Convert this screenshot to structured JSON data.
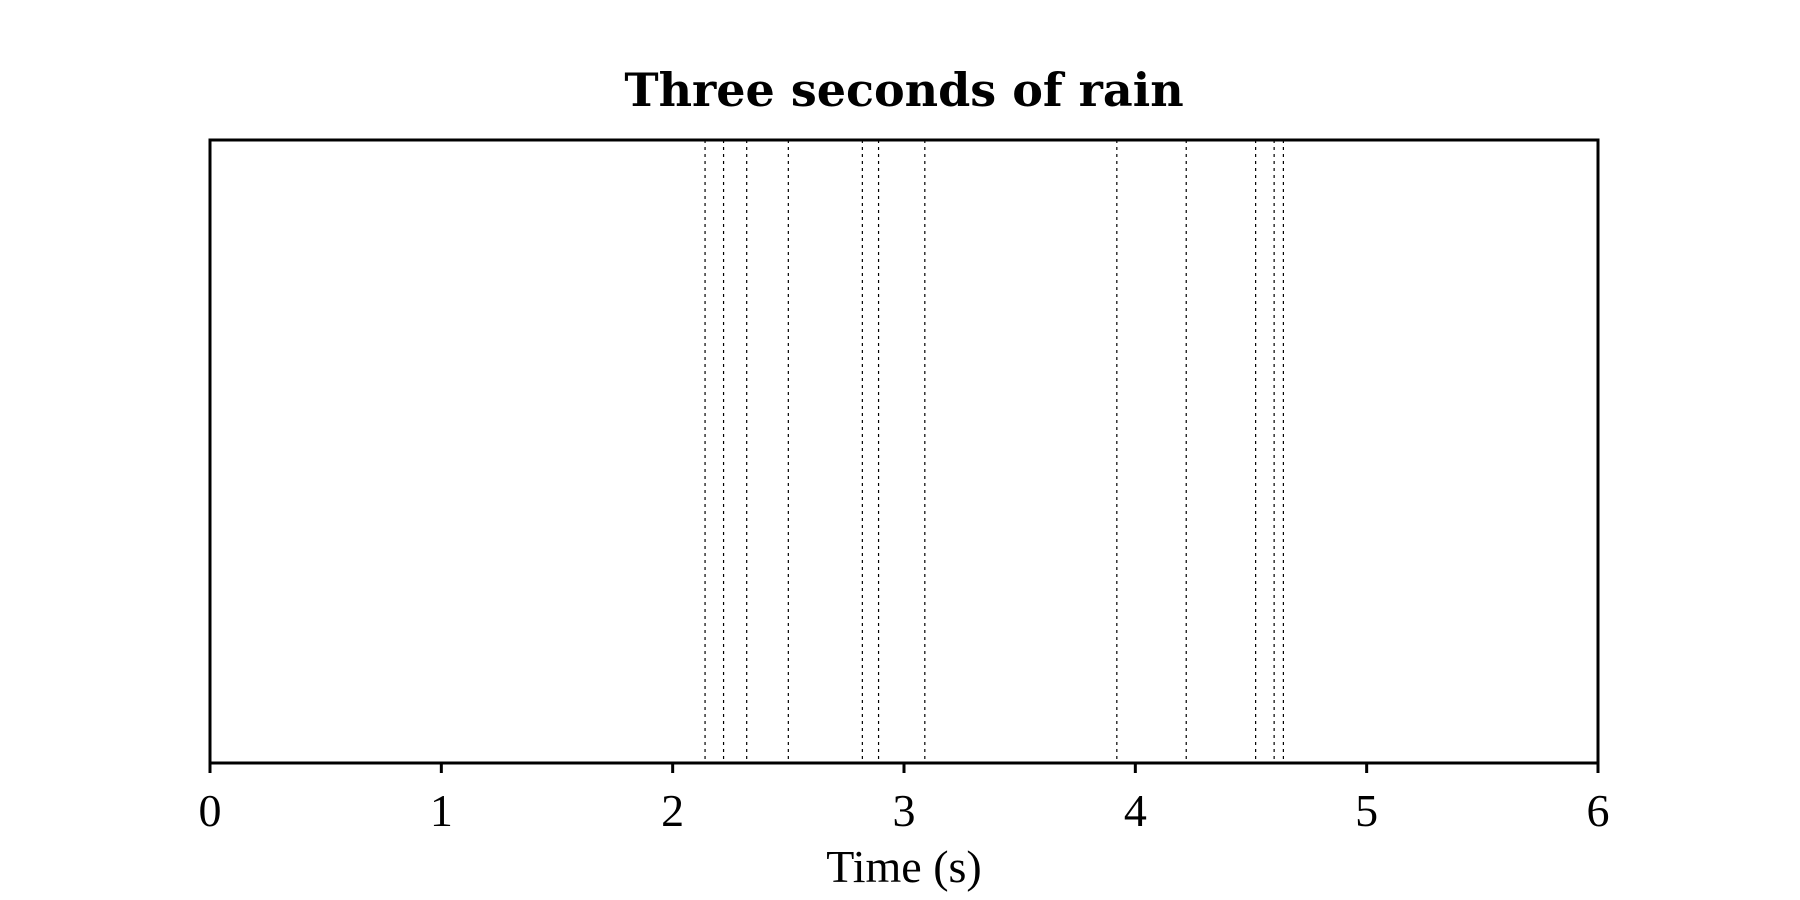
{
  "chart_data": {
    "type": "event",
    "title": "Three seconds of rain",
    "xlabel": "Time (s)",
    "ylabel": "",
    "xlim": [
      0,
      6
    ],
    "xticks": [
      0,
      1,
      2,
      3,
      4,
      5,
      6
    ],
    "xtick_labels": [
      "0",
      "1",
      "2",
      "3",
      "4",
      "5",
      "6"
    ],
    "grid": false,
    "line_style": "dotted",
    "line_color": "#000000",
    "events": [
      2.14,
      2.22,
      2.32,
      2.5,
      2.82,
      2.89,
      3.09,
      3.92,
      4.22,
      4.52,
      4.6,
      4.64
    ]
  }
}
